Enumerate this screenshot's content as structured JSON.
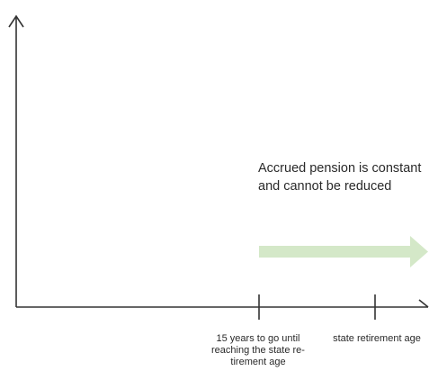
{
  "diagram": {
    "annotation": "Accrued pension is constant and cannot be reduced",
    "ticks": [
      {
        "label": "15 years to go until reaching the state re-tirement age"
      },
      {
        "label": "state retirement age"
      }
    ]
  },
  "colors": {
    "axis": "#333333",
    "arrow": "#d4e8c8",
    "text": "#2a2a2a"
  }
}
